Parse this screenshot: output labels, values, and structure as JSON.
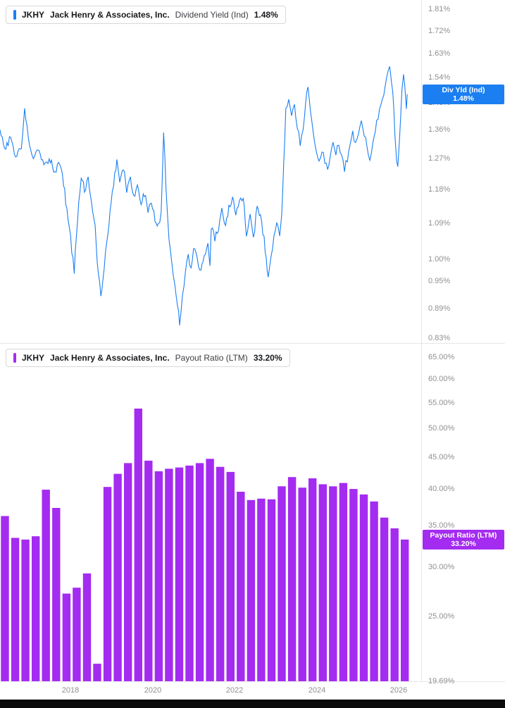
{
  "colors": {
    "line_blue": "#1B7FF2",
    "bar_purple": "#A42BF0",
    "axis_text": "#8F9093",
    "grid_line": "#E7E7E9",
    "badge_text": "#FFFFFF",
    "text_dark": "#17191C",
    "bottom_bar": "#0B0B0C"
  },
  "ui": {
    "top_legend": {
      "ticker": "JKHY",
      "company": "Jack Henry & Associates, Inc.",
      "metric": "Dividend Yield (Ind)",
      "value": "1.48%"
    },
    "bottom_legend": {
      "ticker": "JKHY",
      "company": "Jack Henry & Associates, Inc.",
      "metric": "Payout Ratio (LTM)",
      "value": "33.20%"
    },
    "top_badge": {
      "line1": "Div Yld (Ind)",
      "line2": "1.48%"
    },
    "bottom_badge": {
      "line1": "Payout Ratio (LTM)",
      "line2": "33.20%"
    }
  },
  "x_axis": {
    "ticks": [
      2018,
      2020,
      2022,
      2024,
      2026
    ],
    "labels": [
      "2018",
      "2020",
      "2022",
      "2024",
      "2026"
    ]
  },
  "chart_data": [
    {
      "id": "dividend-yield",
      "type": "line",
      "title": "JKHY Jack Henry & Associates, Inc. Dividend Yield (Ind) 1.48%",
      "ylabel": "Dividend Yield (Ind) %",
      "y_scale": "log",
      "grid": false,
      "legend_position": "top-left",
      "x_range": [
        2016.28,
        2026.55
      ],
      "y_range": [
        0.82,
        1.85
      ],
      "y_ticks": [
        1.81,
        1.72,
        1.63,
        1.54,
        1.45,
        1.36,
        1.27,
        1.18,
        1.09,
        1.0,
        0.95,
        0.89,
        0.83
      ],
      "y_tick_labels": [
        "1.81%",
        "1.72%",
        "1.63%",
        "1.54%",
        "1.45%",
        "1.36%",
        "1.27%",
        "1.18%",
        "1.09%",
        "1.00%",
        "0.95%",
        "0.89%",
        "0.83%"
      ],
      "last_value": 1.48,
      "noise_rel": 0.009,
      "series": [
        {
          "name": "Dividend Yield (Ind)",
          "unit": "%",
          "points": [
            [
              2016.28,
              1.36
            ],
            [
              2016.42,
              1.3
            ],
            [
              2016.54,
              1.34
            ],
            [
              2016.66,
              1.28
            ],
            [
              2016.8,
              1.31
            ],
            [
              2016.88,
              1.42
            ],
            [
              2017.06,
              1.27
            ],
            [
              2017.23,
              1.3
            ],
            [
              2017.35,
              1.25
            ],
            [
              2017.48,
              1.27
            ],
            [
              2017.62,
              1.23
            ],
            [
              2017.74,
              1.26
            ],
            [
              2017.83,
              1.2
            ],
            [
              2017.91,
              1.12
            ],
            [
              2018.0,
              1.05
            ],
            [
              2018.09,
              0.97
            ],
            [
              2018.17,
              1.1
            ],
            [
              2018.26,
              1.22
            ],
            [
              2018.34,
              1.18
            ],
            [
              2018.43,
              1.21
            ],
            [
              2018.51,
              1.15
            ],
            [
              2018.6,
              1.08
            ],
            [
              2018.65,
              1.0
            ],
            [
              2018.74,
              0.91
            ],
            [
              2018.82,
              0.98
            ],
            [
              2018.91,
              1.06
            ],
            [
              2018.99,
              1.14
            ],
            [
              2019.08,
              1.22
            ],
            [
              2019.13,
              1.26
            ],
            [
              2019.2,
              1.21
            ],
            [
              2019.29,
              1.24
            ],
            [
              2019.37,
              1.18
            ],
            [
              2019.46,
              1.21
            ],
            [
              2019.54,
              1.16
            ],
            [
              2019.63,
              1.19
            ],
            [
              2019.72,
              1.14
            ],
            [
              2019.8,
              1.17
            ],
            [
              2019.89,
              1.12
            ],
            [
              2019.97,
              1.15
            ],
            [
              2020.06,
              1.1
            ],
            [
              2020.14,
              1.08
            ],
            [
              2020.21,
              1.12
            ],
            [
              2020.27,
              1.35
            ],
            [
              2020.33,
              1.18
            ],
            [
              2020.4,
              1.05
            ],
            [
              2020.47,
              0.99
            ],
            [
              2020.54,
              0.95
            ],
            [
              2020.61,
              0.9
            ],
            [
              2020.66,
              0.86
            ],
            [
              2020.73,
              0.92
            ],
            [
              2020.8,
              0.97
            ],
            [
              2020.87,
              1.01
            ],
            [
              2020.94,
              0.98
            ],
            [
              2021.0,
              1.03
            ],
            [
              2021.09,
              1.0
            ],
            [
              2021.18,
              0.97
            ],
            [
              2021.26,
              1.01
            ],
            [
              2021.35,
              1.04
            ],
            [
              2021.4,
              0.98
            ],
            [
              2021.43,
              1.08
            ],
            [
              2021.52,
              1.05
            ],
            [
              2021.61,
              1.08
            ],
            [
              2021.69,
              1.12
            ],
            [
              2021.78,
              1.09
            ],
            [
              2021.86,
              1.13
            ],
            [
              2021.95,
              1.16
            ],
            [
              2022.03,
              1.12
            ],
            [
              2022.12,
              1.15
            ],
            [
              2022.21,
              1.16
            ],
            [
              2022.29,
              1.06
            ],
            [
              2022.38,
              1.12
            ],
            [
              2022.46,
              1.05
            ],
            [
              2022.55,
              1.13
            ],
            [
              2022.63,
              1.11
            ],
            [
              2022.72,
              1.05
            ],
            [
              2022.77,
              1.0
            ],
            [
              2022.82,
              0.96
            ],
            [
              2022.89,
              1.01
            ],
            [
              2022.96,
              1.05
            ],
            [
              2023.03,
              1.09
            ],
            [
              2023.1,
              1.06
            ],
            [
              2023.15,
              1.12
            ],
            [
              2023.2,
              1.25
            ],
            [
              2023.25,
              1.42
            ],
            [
              2023.32,
              1.46
            ],
            [
              2023.39,
              1.4
            ],
            [
              2023.46,
              1.44
            ],
            [
              2023.53,
              1.37
            ],
            [
              2023.6,
              1.32
            ],
            [
              2023.67,
              1.36
            ],
            [
              2023.73,
              1.44
            ],
            [
              2023.79,
              1.51
            ],
            [
              2023.85,
              1.42
            ],
            [
              2023.92,
              1.35
            ],
            [
              2023.99,
              1.3
            ],
            [
              2024.06,
              1.26
            ],
            [
              2024.13,
              1.3
            ],
            [
              2024.2,
              1.26
            ],
            [
              2024.27,
              1.23
            ],
            [
              2024.33,
              1.27
            ],
            [
              2024.4,
              1.31
            ],
            [
              2024.47,
              1.28
            ],
            [
              2024.54,
              1.32
            ],
            [
              2024.61,
              1.28
            ],
            [
              2024.68,
              1.24
            ],
            [
              2024.75,
              1.27
            ],
            [
              2024.81,
              1.31
            ],
            [
              2024.88,
              1.35
            ],
            [
              2024.95,
              1.31
            ],
            [
              2025.02,
              1.35
            ],
            [
              2025.09,
              1.39
            ],
            [
              2025.16,
              1.35
            ],
            [
              2025.23,
              1.31
            ],
            [
              2025.3,
              1.27
            ],
            [
              2025.37,
              1.31
            ],
            [
              2025.43,
              1.36
            ],
            [
              2025.5,
              1.4
            ],
            [
              2025.57,
              1.44
            ],
            [
              2025.64,
              1.49
            ],
            [
              2025.71,
              1.54
            ],
            [
              2025.78,
              1.59
            ],
            [
              2025.83,
              1.52
            ],
            [
              2025.88,
              1.44
            ],
            [
              2025.91,
              1.35
            ],
            [
              2025.95,
              1.26
            ],
            [
              2025.98,
              1.24
            ],
            [
              2026.02,
              1.32
            ],
            [
              2026.05,
              1.4
            ],
            [
              2026.08,
              1.5
            ],
            [
              2026.12,
              1.55
            ],
            [
              2026.15,
              1.5
            ],
            [
              2026.19,
              1.44
            ],
            [
              2026.21,
              1.48
            ]
          ]
        }
      ]
    },
    {
      "id": "payout-ratio",
      "type": "bar",
      "title": "JKHY Jack Henry & Associates, Inc. Payout Ratio (LTM) 33.20%",
      "ylabel": "Payout Ratio (LTM) %",
      "y_scale": "log",
      "grid": false,
      "legend_position": "top-left",
      "x_range": [
        2016.28,
        2026.55
      ],
      "y_range": [
        19.69,
        68.5
      ],
      "y_ticks": [
        65,
        60,
        55,
        50,
        45,
        40,
        35,
        30,
        25,
        19.69
      ],
      "y_tick_labels": [
        "65.00%",
        "60.00%",
        "55.00%",
        "50.00%",
        "45.00%",
        "40.00%",
        "35.00%",
        "30.00%",
        "25.00%",
        "19.69%"
      ],
      "last_value": 33.2,
      "series": [
        {
          "name": "Payout Ratio (LTM)",
          "unit": "%",
          "interval": "quarterly",
          "start_year": 2016.4,
          "interval_years": 0.25,
          "values": [
            36.2,
            33.4,
            33.2,
            33.6,
            39.9,
            37.3,
            27.2,
            27.8,
            29.3,
            21.0,
            40.3,
            42.3,
            44.0,
            53.8,
            44.4,
            42.7,
            43.1,
            43.3,
            43.6,
            44.0,
            44.7,
            43.4,
            42.6,
            39.6,
            38.4,
            38.6,
            38.5,
            40.4,
            41.8,
            40.2,
            41.6,
            40.7,
            40.4,
            40.9,
            40.0,
            39.2,
            38.2,
            36.0,
            34.6,
            33.2
          ]
        }
      ]
    }
  ]
}
